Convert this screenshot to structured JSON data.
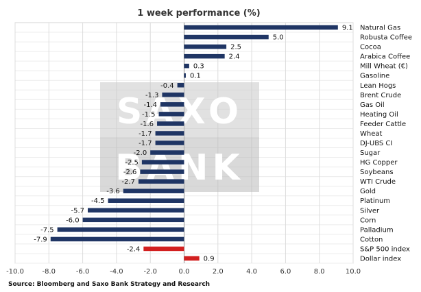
{
  "chart_data": {
    "type": "bar",
    "orientation": "horizontal",
    "title": "1 week performance (%)",
    "xlim": [
      -10,
      10
    ],
    "xticks": [
      "-10.0",
      "-8.0",
      "-6.0",
      "-4.0",
      "-2.0",
      "0.0",
      "2.0",
      "4.0",
      "6.0",
      "8.0",
      "10.0"
    ],
    "grid": "vertical",
    "categories": [
      "Natural Gas",
      "Robusta Coffee",
      "Cocoa",
      "Arabica Coffee",
      "Mill Wheat (€)",
      "Gasoline",
      "Lean Hogs",
      "Brent Crude",
      "Gas Oil",
      "Heating Oil",
      "Feeder Cattle",
      "Wheat",
      "DJ-UBS CI",
      "Sugar",
      "HG Copper",
      "Soybeans",
      "WTI Crude",
      "Gold",
      "Platinum",
      "Silver",
      "Corn",
      "Palladium",
      "Cotton",
      "S&P 500 index",
      "Dollar index"
    ],
    "values": [
      9.1,
      5.0,
      2.5,
      2.4,
      0.3,
      0.1,
      -0.4,
      -1.3,
      -1.4,
      -1.5,
      -1.6,
      -1.7,
      -1.7,
      -2.0,
      -2.5,
      -2.6,
      -2.7,
      -3.6,
      -4.5,
      -5.7,
      -6.0,
      -7.5,
      -7.9,
      -2.4,
      0.9
    ],
    "value_labels": [
      "9.1",
      "5.0",
      "2.5",
      "2.4",
      "0.3",
      "0.1",
      "-0.4",
      "-1.3",
      "-1.4",
      "-1.5",
      "-1.6",
      "-1.7",
      "-1.7",
      "-2.0",
      "-2.5",
      "-2.6",
      "-2.7",
      "-3.6",
      "-4.5",
      "-5.7",
      "-6.0",
      "-7.5",
      "-7.9",
      "-2.4",
      "0.9"
    ],
    "bar_colors": [
      "#1f3564",
      "#1f3564",
      "#1f3564",
      "#1f3564",
      "#1f3564",
      "#1f3564",
      "#1f3564",
      "#1f3564",
      "#1f3564",
      "#1f3564",
      "#1f3564",
      "#1f3564",
      "#1f3564",
      "#1f3564",
      "#1f3564",
      "#1f3564",
      "#1f3564",
      "#1f3564",
      "#1f3564",
      "#1f3564",
      "#1f3564",
      "#1f3564",
      "#1f3564",
      "#d21f1f",
      "#d21f1f"
    ],
    "source": "Source: Bloomberg and Saxo Bank Strategy and Research"
  },
  "watermark": {
    "line1": "SAXO",
    "line2": "BANK"
  }
}
